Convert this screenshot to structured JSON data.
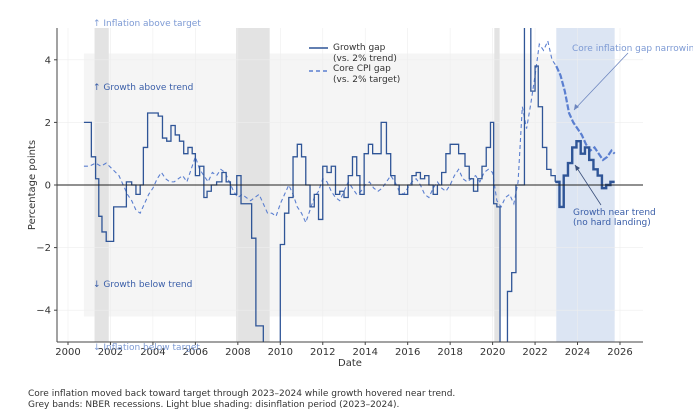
{
  "chart_data": {
    "type": "line",
    "title": "",
    "xlabel": "Date",
    "ylabel": "Percentage points",
    "xlim": [
      1999.5,
      2027.0
    ],
    "ylim": [
      -5.0,
      5.0
    ],
    "x_ticks": [
      2000,
      2002,
      2004,
      2006,
      2008,
      2010,
      2012,
      2014,
      2016,
      2018,
      2020,
      2022,
      2024,
      2026
    ],
    "x_tick_labels": [
      "2000",
      "2002",
      "2004",
      "2006",
      "2008",
      "2010",
      "2012",
      "2014",
      "2016",
      "2018",
      "2020",
      "2022",
      "2024",
      "2026"
    ],
    "y_ticks": [
      -4,
      -2,
      0,
      2,
      4
    ],
    "y_tick_labels": [
      "−4",
      "−2",
      "0",
      "2",
      "4"
    ],
    "grid": true,
    "zero_line": true,
    "legend_position": "top-center",
    "legend": [
      {
        "label_line1": "Growth gap",
        "label_line2": "(vs. 2% trend)",
        "style": "solid"
      },
      {
        "label_line1": "Core CPI gap",
        "label_line2": "(vs. 2% target)",
        "style": "dashed"
      }
    ],
    "background_band": {
      "x": [
        2000.75,
        2025.75
      ],
      "y": [
        -4.2,
        4.2
      ]
    },
    "recession_bands": [
      {
        "start": 2001.25,
        "end": 2001.92
      },
      {
        "start": 2007.92,
        "end": 2009.5
      },
      {
        "start": 2020.08,
        "end": 2020.33
      }
    ],
    "disinflation_band": {
      "start": 2023.0,
      "end": 2025.75
    },
    "series": [
      {
        "name": "Growth gap (vs. 2% trend)",
        "x": [
          2000.75,
          2001.0,
          2001.1,
          2001.3,
          2001.45,
          2001.6,
          2001.8,
          2001.95,
          2002.15,
          2002.6,
          2002.75,
          2003.0,
          2003.2,
          2003.4,
          2003.55,
          2003.75,
          2004.25,
          2004.45,
          2004.65,
          2004.85,
          2005.05,
          2005.25,
          2005.45,
          2005.65,
          2005.85,
          2006.0,
          2006.2,
          2006.4,
          2006.55,
          2006.75,
          2007.0,
          2007.25,
          2007.45,
          2007.65,
          2007.95,
          2008.15,
          2008.5,
          2008.65,
          2008.85,
          2009.05,
          2009.2,
          2009.85,
          2010.0,
          2010.2,
          2010.4,
          2010.6,
          2010.8,
          2011.0,
          2011.2,
          2011.4,
          2011.6,
          2011.8,
          2012.0,
          2012.2,
          2012.4,
          2012.6,
          2012.8,
          2013.0,
          2013.2,
          2013.4,
          2013.6,
          2013.75,
          2013.95,
          2014.15,
          2014.35,
          2014.55,
          2014.75,
          2015.0,
          2015.2,
          2015.4,
          2015.6,
          2015.8,
          2016.0,
          2016.2,
          2016.4,
          2016.6,
          2016.8,
          2017.0,
          2017.2,
          2017.4,
          2017.6,
          2017.8,
          2018.0,
          2018.2,
          2018.4,
          2018.7,
          2018.9,
          2019.1,
          2019.3,
          2019.5,
          2019.7,
          2019.9,
          2020.05,
          2020.2,
          2020.35,
          2020.5,
          2020.7,
          2020.9,
          2021.1,
          2021.3,
          2021.5,
          2021.6,
          2021.8,
          2022.0,
          2022.15,
          2022.35,
          2022.55,
          2022.75,
          2022.95,
          2023.15,
          2023.35,
          2023.55,
          2023.75,
          2023.95,
          2024.15,
          2024.35,
          2024.55,
          2024.75,
          2024.95,
          2025.15,
          2025.35,
          2025.55,
          2025.75
        ],
        "values": [
          2.0,
          2.0,
          0.9,
          0.2,
          -1.0,
          -1.5,
          -1.8,
          -1.8,
          -0.7,
          -0.7,
          0.1,
          0.0,
          -0.3,
          0.0,
          1.2,
          2.3,
          2.2,
          1.5,
          1.4,
          1.9,
          1.6,
          1.4,
          1.0,
          1.2,
          1.0,
          0.3,
          0.6,
          -0.4,
          -0.2,
          0.0,
          0.1,
          0.4,
          0.1,
          -0.3,
          0.3,
          -0.6,
          -0.6,
          -1.7,
          -4.5,
          -4.5,
          -5.5,
          -5.5,
          -1.9,
          -0.9,
          -0.4,
          0.9,
          1.3,
          0.9,
          0.0,
          -0.7,
          -0.3,
          -1.1,
          0.6,
          0.4,
          0.6,
          -0.3,
          -0.2,
          -0.4,
          0.3,
          0.9,
          0.3,
          -0.3,
          1.0,
          1.3,
          1.0,
          1.0,
          2.0,
          1.0,
          0.3,
          0.0,
          -0.3,
          -0.3,
          0.0,
          0.3,
          0.4,
          0.2,
          0.3,
          0.0,
          -0.3,
          0.0,
          0.4,
          1.0,
          1.3,
          1.3,
          1.0,
          0.6,
          0.2,
          -0.2,
          0.2,
          0.6,
          1.2,
          2.0,
          -0.6,
          -0.7,
          -5.5,
          -5.5,
          -3.4,
          -2.8,
          0.0,
          0.0,
          6.0,
          6.0,
          3.0,
          3.8,
          2.5,
          1.2,
          0.5,
          0.3,
          0.1,
          -0.7,
          0.3,
          0.7,
          1.2,
          1.4,
          1.0,
          1.2,
          0.8,
          0.5,
          0.3,
          -0.1,
          0.0,
          0.1,
          0.1
        ]
      },
      {
        "name": "Core CPI gap (vs. 2% target)",
        "x": [
          2000.75,
          2001.0,
          2001.3,
          2001.55,
          2001.8,
          2002.1,
          2002.4,
          2002.6,
          2002.8,
          2003.0,
          2003.2,
          2003.4,
          2003.6,
          2003.8,
          2004.0,
          2004.2,
          2004.4,
          2004.6,
          2004.8,
          2005.0,
          2005.2,
          2005.4,
          2005.6,
          2005.8,
          2006.0,
          2006.2,
          2006.4,
          2006.6,
          2006.8,
          2007.0,
          2007.2,
          2007.4,
          2007.6,
          2007.8,
          2008.0,
          2008.2,
          2008.4,
          2008.6,
          2008.8,
          2009.0,
          2009.2,
          2009.4,
          2009.6,
          2009.8,
          2010.0,
          2010.2,
          2010.4,
          2010.6,
          2010.8,
          2011.0,
          2011.2,
          2011.4,
          2011.6,
          2011.8,
          2012.0,
          2012.2,
          2012.4,
          2012.6,
          2012.8,
          2013.0,
          2013.2,
          2013.4,
          2013.6,
          2013.8,
          2014.0,
          2014.2,
          2014.4,
          2014.6,
          2014.8,
          2015.0,
          2015.2,
          2015.4,
          2015.6,
          2015.8,
          2016.0,
          2016.2,
          2016.4,
          2016.6,
          2016.8,
          2017.0,
          2017.2,
          2017.4,
          2017.6,
          2017.8,
          2018.0,
          2018.2,
          2018.4,
          2018.6,
          2018.8,
          2019.0,
          2019.2,
          2019.4,
          2019.6,
          2019.8,
          2020.0,
          2020.2,
          2020.4,
          2020.6,
          2020.8,
          2021.0,
          2021.2,
          2021.4,
          2021.6,
          2021.8,
          2022.0,
          2022.2,
          2022.4,
          2022.6,
          2022.8,
          2023.0,
          2023.2,
          2023.4,
          2023.6,
          2023.8,
          2024.0,
          2024.2,
          2024.4,
          2024.6,
          2024.8,
          2025.0,
          2025.2,
          2025.4,
          2025.6,
          2025.75
        ],
        "values": [
          0.6,
          0.6,
          0.7,
          0.6,
          0.7,
          0.5,
          0.3,
          0.0,
          -0.3,
          -0.5,
          -0.8,
          -0.9,
          -0.6,
          -0.3,
          -0.1,
          0.2,
          0.4,
          0.2,
          0.1,
          0.1,
          0.2,
          0.3,
          0.1,
          0.5,
          0.9,
          0.5,
          0.3,
          0.1,
          0.4,
          0.3,
          0.5,
          0.4,
          0.1,
          -0.2,
          -0.4,
          -0.3,
          -0.4,
          -0.5,
          -0.4,
          -0.3,
          -0.6,
          -0.9,
          -0.9,
          -1.0,
          -0.6,
          -0.3,
          0.0,
          -0.3,
          -0.7,
          -0.9,
          -1.2,
          -0.8,
          -0.4,
          -0.2,
          0.2,
          0.1,
          -0.2,
          -0.4,
          -0.5,
          -0.2,
          0.1,
          -0.1,
          -0.3,
          -0.2,
          0.0,
          0.1,
          -0.1,
          -0.2,
          -0.1,
          0.1,
          0.3,
          0.1,
          -0.2,
          -0.3,
          -0.1,
          0.1,
          0.2,
          0.0,
          -0.3,
          -0.4,
          -0.1,
          0.1,
          -0.1,
          -0.2,
          0.0,
          0.3,
          0.5,
          0.2,
          0.1,
          0.2,
          0.3,
          0.1,
          0.4,
          0.5,
          0.4,
          -0.5,
          -0.7,
          -0.4,
          -0.3,
          -0.6,
          0.1,
          2.5,
          1.8,
          2.6,
          3.5,
          4.5,
          4.3,
          4.6,
          4.0,
          3.8,
          3.5,
          3.0,
          2.3,
          2.0,
          1.8,
          1.6,
          1.3,
          1.1,
          1.2,
          1.0,
          0.8,
          0.9,
          1.1,
          1.0
        ]
      }
    ],
    "highlight_segment": {
      "start": 2023.0,
      "end": 2025.75
    },
    "annotations": [
      {
        "name": "inflation-above-target",
        "text": "↑ Inflation above target"
      },
      {
        "name": "inflation-below-target",
        "text": "↓ Inflation below target"
      },
      {
        "name": "growth-above-trend",
        "text": "↑ Growth above trend"
      },
      {
        "name": "growth-below-trend",
        "text": "↓ Growth below trend"
      },
      {
        "name": "core-inflation-narrowing",
        "text": "Core inflation gap narrowing",
        "target": [
          2023.7,
          2.3
        ]
      },
      {
        "name": "growth-near-trend-1",
        "text": "Growth near trend",
        "target": [
          2023.8,
          0.8
        ]
      },
      {
        "name": "growth-near-trend-2",
        "text": "(no hard landing)"
      }
    ],
    "colors": {
      "growth": "#2f5597",
      "cpi": "#5b7fd0",
      "annotation_dark": "#3a5ea8",
      "annotation_light": "#7d9ad4",
      "recession": "#e3e3e3",
      "disinflation": "#dce5f3",
      "background_band": "#f5f5f5"
    }
  },
  "caption": {
    "line1": "Core inflation moved back toward target through 2023–2024 while growth hovered near trend.",
    "line2": "Grey bands: NBER recessions. Light blue shading: disinflation period (2023–2024)."
  }
}
